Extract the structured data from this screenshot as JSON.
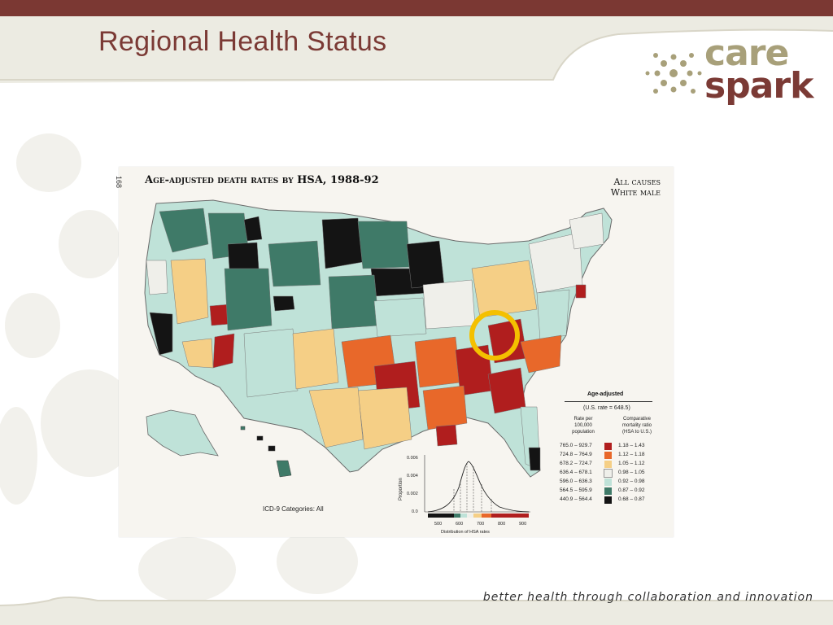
{
  "slide": {
    "title": "Regional Health Status",
    "tagline": "better health through collaboration and innovation"
  },
  "logo": {
    "line1": "care",
    "line2": "spark"
  },
  "figure": {
    "page_number": "168",
    "title": "Age-adjusted death rates by HSA, 1988-92",
    "cause_line1": "All causes",
    "cause_line2": "White male",
    "icd_label": "ICD-9 Categories:  All",
    "highlight_circle_color": "#f4c000"
  },
  "legend": {
    "heading": "Age-adjusted",
    "us_rate": "(U.S. rate = 648.5)",
    "col1_header": [
      "Rate per",
      "100,000",
      "population"
    ],
    "col2_header": [
      "Comparative",
      "mortality ratio",
      "(HSA to U.S.)"
    ],
    "rows": [
      {
        "rate": "765.0 – 929.7",
        "ratio": "1.18 – 1.43",
        "color": "#b01e1e"
      },
      {
        "rate": "724.8 – 764.9",
        "ratio": "1.12 – 1.18",
        "color": "#e8682a"
      },
      {
        "rate": "678.2 – 724.7",
        "ratio": "1.05 – 1.12",
        "color": "#f5cf86"
      },
      {
        "rate": "636.4 – 678.1",
        "ratio": "0.98 – 1.05",
        "color": "#efefea"
      },
      {
        "rate": "596.0 – 636.3",
        "ratio": "0.92 – 0.98",
        "color": "#bfe2d8"
      },
      {
        "rate": "564.5 – 595.9",
        "ratio": "0.87 – 0.92",
        "color": "#3f7a68"
      },
      {
        "rate": "440.9 – 564.4",
        "ratio": "0.68 – 0.87",
        "color": "#141414"
      }
    ]
  },
  "histogram": {
    "y_label": "Proportion",
    "y_ticks": [
      "0.006",
      "0.004",
      "0.002",
      "0.0"
    ],
    "x_ticks": [
      "500",
      "600",
      "700",
      "800",
      "900"
    ],
    "x_label": "Distribution of HSA rates"
  },
  "colors": {
    "brand_maroon": "#7b3833",
    "brand_tan": "#a8a07a",
    "header_cream": "#ecebe2"
  }
}
